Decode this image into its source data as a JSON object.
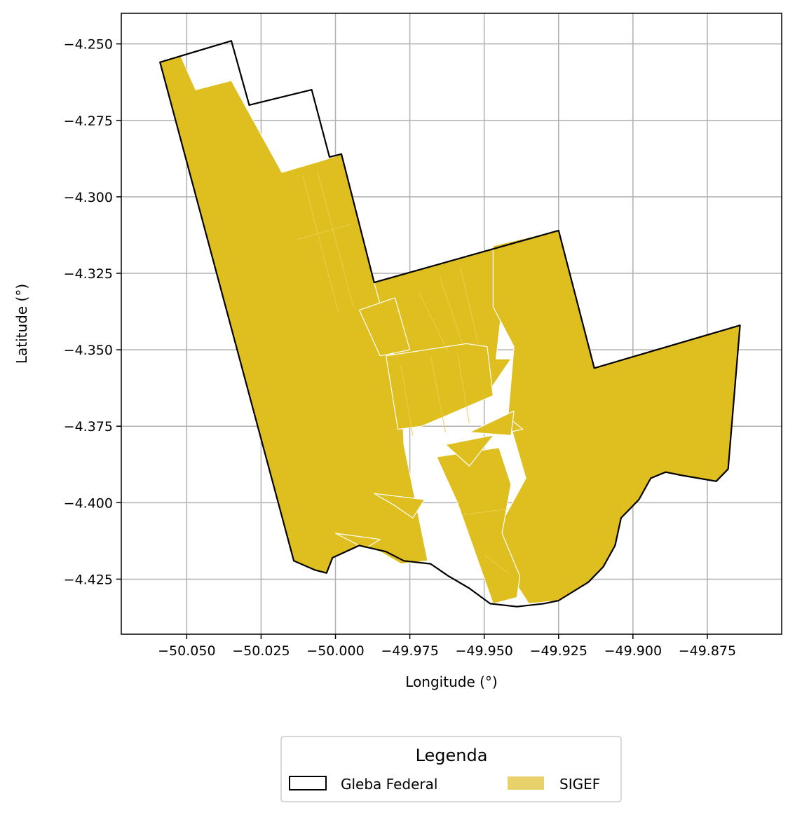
{
  "chart_data": {
    "type": "map",
    "xlabel": "Longitude (°)",
    "ylabel": "Latitude (°)",
    "xlim": [
      -50.072,
      -49.85
    ],
    "ylim": [
      -4.443,
      -4.24
    ],
    "x_ticks": [
      -50.05,
      -50.025,
      -50.0,
      -49.975,
      -49.95,
      -49.925,
      -49.9,
      -49.875
    ],
    "x_tick_labels": [
      "−50.050",
      "−50.025",
      "−50.000",
      "−49.975",
      "−49.950",
      "−49.925",
      "−49.900",
      "−49.875"
    ],
    "y_ticks": [
      -4.25,
      -4.275,
      -4.3,
      -4.325,
      -4.35,
      -4.375,
      -4.4,
      -4.425
    ],
    "y_tick_labels": [
      "−4.250",
      "−4.275",
      "−4.300",
      "−4.325",
      "−4.350",
      "−4.375",
      "−4.400",
      "−4.425"
    ],
    "grid": true,
    "legend": {
      "title": "Legenda",
      "placement": "below plot, centered",
      "items": [
        {
          "label": "Gleba Federal",
          "style": "outline",
          "color": "#000000"
        },
        {
          "label": "SIGEF",
          "style": "fill",
          "color": "#e8d16a"
        }
      ]
    },
    "layers": {
      "gleba_federal": {
        "edge_color": "#000000",
        "coords": [
          [
            -50.059,
            -4.256
          ],
          [
            -50.035,
            -4.249
          ],
          [
            -50.029,
            -4.27
          ],
          [
            -50.008,
            -4.265
          ],
          [
            -50.002,
            -4.287
          ],
          [
            -49.998,
            -4.286
          ],
          [
            -49.987,
            -4.328
          ],
          [
            -49.925,
            -4.311
          ],
          [
            -49.913,
            -4.356
          ],
          [
            -49.864,
            -4.342
          ],
          [
            -49.868,
            -4.389
          ],
          [
            -49.872,
            -4.393
          ],
          [
            -49.884,
            -4.391
          ],
          [
            -49.889,
            -4.39
          ],
          [
            -49.894,
            -4.392
          ],
          [
            -49.898,
            -4.399
          ],
          [
            -49.904,
            -4.405
          ],
          [
            -49.906,
            -4.414
          ],
          [
            -49.91,
            -4.421
          ],
          [
            -49.915,
            -4.426
          ],
          [
            -49.925,
            -4.432
          ],
          [
            -49.93,
            -4.433
          ],
          [
            -49.939,
            -4.434
          ],
          [
            -49.948,
            -4.433
          ],
          [
            -49.955,
            -4.428
          ],
          [
            -49.962,
            -4.424
          ],
          [
            -49.968,
            -4.42
          ],
          [
            -49.977,
            -4.419
          ],
          [
            -49.983,
            -4.416
          ],
          [
            -49.992,
            -4.414
          ],
          [
            -50.001,
            -4.418
          ],
          [
            -50.003,
            -4.423
          ],
          [
            -50.007,
            -4.422
          ],
          [
            -50.014,
            -4.419
          ]
        ]
      },
      "sigef": {
        "fill_color": "#dfbe1f",
        "inner_line_color": "#e8cf4e",
        "parcels": [
          [
            [
              -50.059,
              -4.256
            ],
            [
              -50.052,
              -4.254
            ],
            [
              -50.047,
              -4.265
            ],
            [
              -50.035,
              -4.262
            ],
            [
              -50.018,
              -4.292
            ],
            [
              -50.004,
              -4.288
            ],
            [
              -49.998,
              -4.286
            ],
            [
              -49.987,
              -4.328
            ],
            [
              -49.975,
              -4.332
            ],
            [
              -49.982,
              -4.35
            ],
            [
              -49.978,
              -4.358
            ],
            [
              -49.977,
              -4.381
            ],
            [
              -49.969,
              -4.419
            ],
            [
              -49.978,
              -4.42
            ],
            [
              -49.985,
              -4.416
            ],
            [
              -49.992,
              -4.414
            ],
            [
              -50.001,
              -4.418
            ],
            [
              -50.003,
              -4.423
            ],
            [
              -50.007,
              -4.422
            ],
            [
              -50.014,
              -4.419
            ]
          ],
          [
            [
              -49.987,
              -4.328
            ],
            [
              -49.95,
              -4.318
            ],
            [
              -49.945,
              -4.316
            ],
            [
              -49.944,
              -4.336
            ],
            [
              -49.946,
              -4.353
            ],
            [
              -49.941,
              -4.353
            ],
            [
              -49.948,
              -4.363
            ],
            [
              -49.958,
              -4.349
            ],
            [
              -49.98,
              -4.353
            ]
          ],
          [
            [
              -49.947,
              -4.316
            ],
            [
              -49.925,
              -4.311
            ],
            [
              -49.913,
              -4.356
            ],
            [
              -49.864,
              -4.342
            ],
            [
              -49.868,
              -4.389
            ],
            [
              -49.872,
              -4.393
            ],
            [
              -49.884,
              -4.391
            ],
            [
              -49.889,
              -4.39
            ],
            [
              -49.894,
              -4.392
            ],
            [
              -49.898,
              -4.399
            ],
            [
              -49.904,
              -4.405
            ],
            [
              -49.906,
              -4.414
            ],
            [
              -49.91,
              -4.421
            ],
            [
              -49.915,
              -4.426
            ],
            [
              -49.925,
              -4.432
            ],
            [
              -49.935,
              -4.433
            ],
            [
              -49.941,
              -4.424
            ],
            [
              -49.945,
              -4.408
            ],
            [
              -49.936,
              -4.392
            ],
            [
              -49.942,
              -4.372
            ],
            [
              -49.94,
              -4.349
            ],
            [
              -49.947,
              -4.336
            ]
          ],
          [
            [
              -49.983,
              -4.352
            ],
            [
              -49.956,
              -4.348
            ],
            [
              -49.949,
              -4.349
            ],
            [
              -49.947,
              -4.365
            ],
            [
              -49.971,
              -4.375
            ],
            [
              -49.979,
              -4.376
            ]
          ],
          [
            [
              -49.966,
              -4.385
            ],
            [
              -49.945,
              -4.382
            ],
            [
              -49.941,
              -4.394
            ],
            [
              -49.944,
              -4.41
            ],
            [
              -49.938,
              -4.424
            ],
            [
              -49.939,
              -4.431
            ],
            [
              -49.947,
              -4.433
            ],
            [
              -49.959,
              -4.4
            ]
          ],
          [
            [
              -49.942,
              -4.372
            ],
            [
              -49.937,
              -4.376
            ],
            [
              -49.963,
              -4.381
            ],
            [
              -49.955,
              -4.388
            ]
          ],
          [
            [
              -49.955,
              -4.377
            ],
            [
              -49.94,
              -4.37
            ],
            [
              -49.941,
              -4.378
            ]
          ],
          [
            [
              -49.992,
              -4.337
            ],
            [
              -49.98,
              -4.333
            ],
            [
              -49.975,
              -4.35
            ],
            [
              -49.985,
              -4.352
            ]
          ],
          [
            [
              -49.987,
              -4.397
            ],
            [
              -49.97,
              -4.399
            ],
            [
              -49.974,
              -4.405
            ],
            [
              -49.98,
              -4.401
            ]
          ],
          [
            [
              -50.0,
              -4.41
            ],
            [
              -49.985,
              -4.412
            ],
            [
              -49.99,
              -4.415
            ]
          ]
        ]
      }
    }
  }
}
